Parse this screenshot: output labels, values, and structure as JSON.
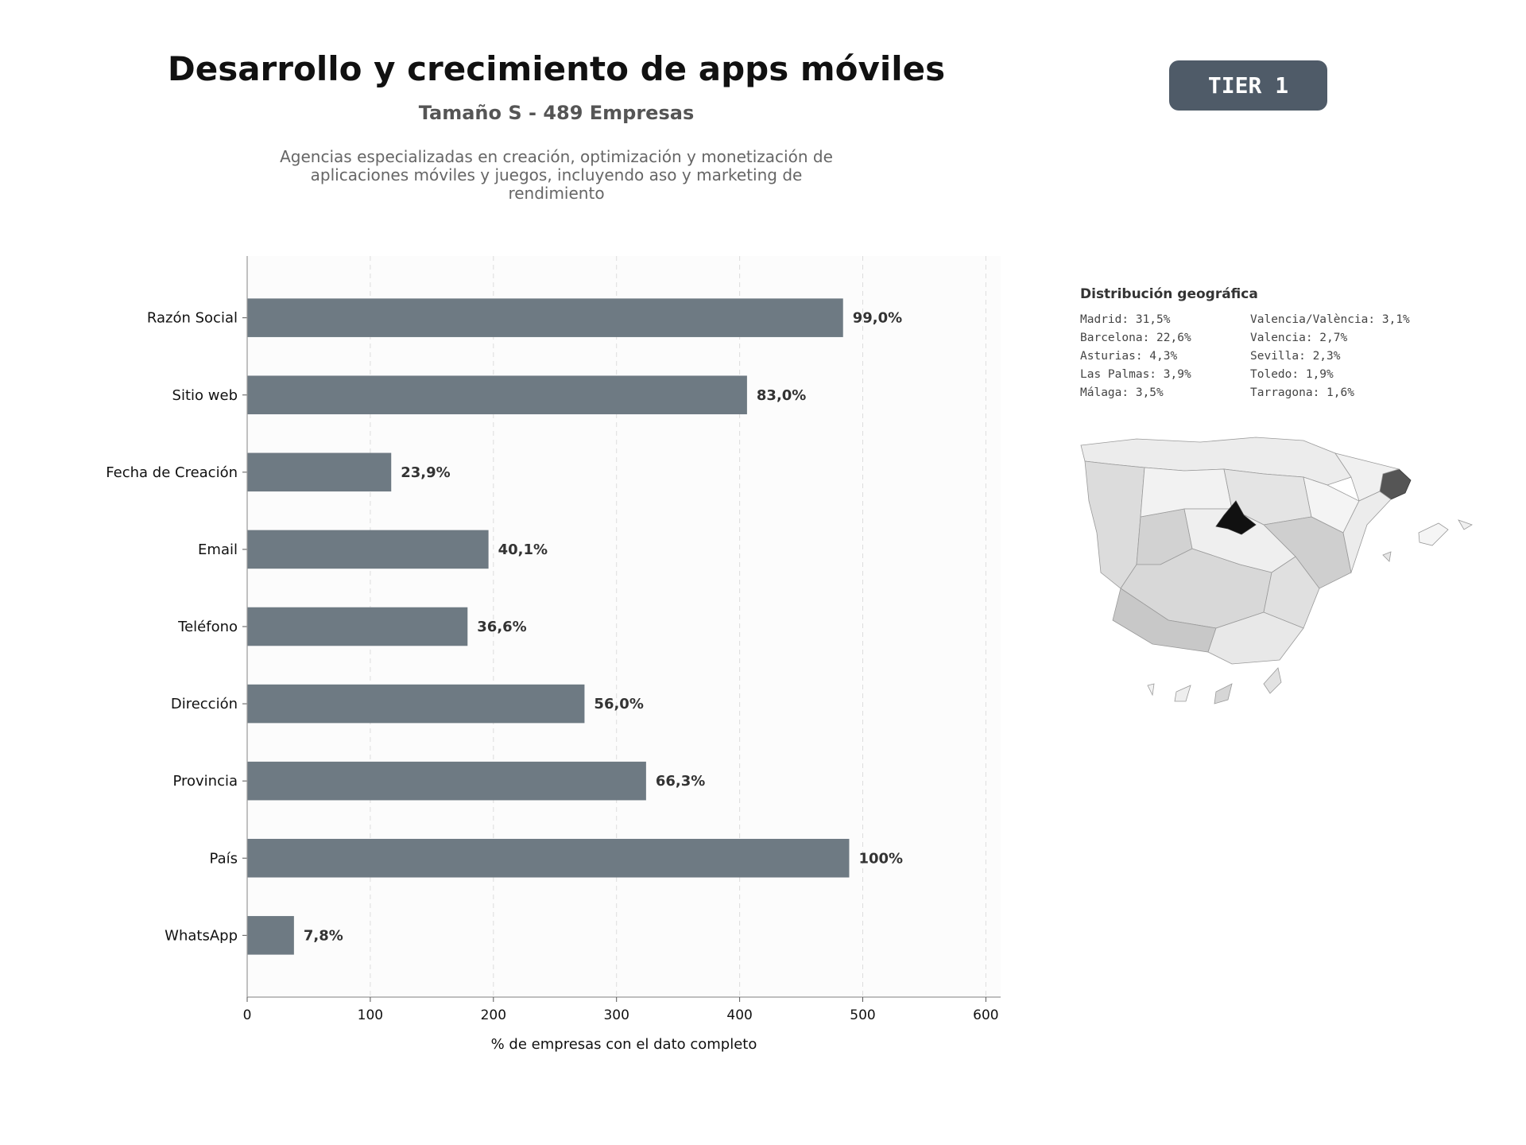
{
  "header": {
    "title": "Desarrollo y crecimiento de apps móviles",
    "subtitle": "Tamaño S - 489 Empresas",
    "description": "Agencias especializadas en creación, optimización y monetización de aplicaciones móviles y juegos, incluyendo aso y marketing de rendimiento",
    "tier": "TIER 1"
  },
  "chart_data": {
    "type": "bar",
    "orientation": "horizontal",
    "categories": [
      "Razón Social",
      "Sitio web",
      "Fecha de Creación",
      "Email",
      "Teléfono",
      "Dirección",
      "Provincia",
      "País",
      "WhatsApp"
    ],
    "values": [
      484,
      406,
      117,
      196,
      179,
      274,
      324,
      489,
      38
    ],
    "data_labels": [
      "99,0%",
      "83,0%",
      "23,9%",
      "40,1%",
      "36,6%",
      "56,0%",
      "66,3%",
      "100%",
      "7,8%"
    ],
    "xlabel": "% de empresas con el dato completo",
    "ylabel": "",
    "xlim": [
      0,
      612
    ],
    "xticks": [
      0,
      100,
      200,
      300,
      400,
      500,
      600
    ],
    "grid": "vertical dashed",
    "bar_color": "#6e7a83"
  },
  "geo": {
    "title": "Distribución geográfica",
    "items": [
      "Madrid: 31,5%",
      "Valencia/València: 3,1%",
      "Barcelona: 22,6%",
      "Valencia: 2,7%",
      "Asturias: 4,3%",
      "Sevilla: 2,3%",
      "Las Palmas: 3,9%",
      "Toledo: 1,9%",
      "Málaga: 3,5%",
      "Tarragona: 1,6%"
    ]
  }
}
